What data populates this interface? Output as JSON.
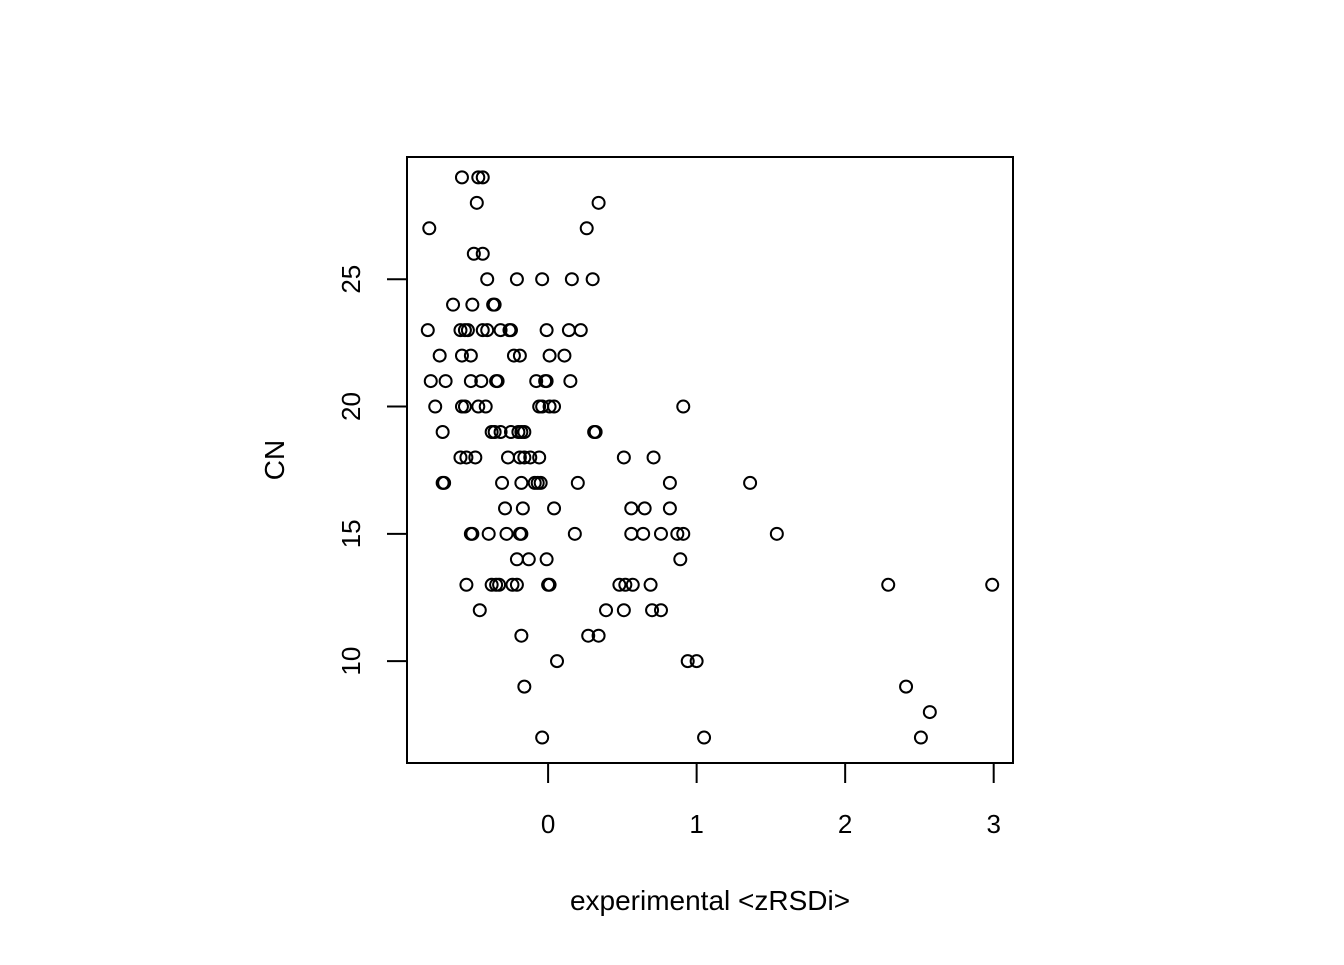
{
  "chart_data": {
    "type": "scatter",
    "title": "",
    "xlabel": "experimental <zRSDi>",
    "ylabel": "CN",
    "xlim": [
      -0.95,
      3.13
    ],
    "ylim": [
      6.0,
      29.8
    ],
    "x_ticks": [
      0,
      1,
      2,
      3
    ],
    "x_tick_labels": [
      "0",
      "1",
      "2",
      "3"
    ],
    "y_ticks": [
      10,
      15,
      20,
      25
    ],
    "y_tick_labels": [
      "10",
      "15",
      "20",
      "25"
    ],
    "grid": false,
    "legend": "none",
    "marker": "open-circle",
    "colors": {
      "points": "#000000",
      "axes": "#000000",
      "background": "#ffffff"
    },
    "series": [
      {
        "points": [
          [
            -0.58,
            29
          ],
          [
            -0.47,
            29
          ],
          [
            -0.44,
            29
          ],
          [
            -0.48,
            28
          ],
          [
            0.34,
            28
          ],
          [
            -0.8,
            27
          ],
          [
            0.26,
            27
          ],
          [
            -0.5,
            26
          ],
          [
            -0.44,
            26
          ],
          [
            -0.41,
            25
          ],
          [
            -0.21,
            25
          ],
          [
            -0.04,
            25
          ],
          [
            0.16,
            25
          ],
          [
            0.3,
            25
          ],
          [
            -0.64,
            24
          ],
          [
            -0.51,
            24
          ],
          [
            -0.37,
            24
          ],
          [
            -0.36,
            24
          ],
          [
            -0.81,
            23
          ],
          [
            -0.59,
            23
          ],
          [
            -0.56,
            23
          ],
          [
            -0.54,
            23
          ],
          [
            -0.44,
            23
          ],
          [
            -0.41,
            23
          ],
          [
            -0.32,
            23
          ],
          [
            -0.26,
            23
          ],
          [
            -0.25,
            23
          ],
          [
            -0.01,
            23
          ],
          [
            0.14,
            23
          ],
          [
            0.22,
            23
          ],
          [
            -0.73,
            22
          ],
          [
            -0.58,
            22
          ],
          [
            -0.52,
            22
          ],
          [
            -0.23,
            22
          ],
          [
            -0.19,
            22
          ],
          [
            0.01,
            22
          ],
          [
            0.11,
            22
          ],
          [
            -0.79,
            21
          ],
          [
            -0.69,
            21
          ],
          [
            -0.52,
            21
          ],
          [
            -0.45,
            21
          ],
          [
            -0.35,
            21
          ],
          [
            -0.34,
            21
          ],
          [
            -0.08,
            21
          ],
          [
            -0.02,
            21
          ],
          [
            -0.01,
            21
          ],
          [
            0.15,
            21
          ],
          [
            -0.76,
            20
          ],
          [
            -0.58,
            20
          ],
          [
            -0.56,
            20
          ],
          [
            -0.47,
            20
          ],
          [
            -0.42,
            20
          ],
          [
            -0.06,
            20
          ],
          [
            -0.04,
            20
          ],
          [
            0.01,
            20
          ],
          [
            0.04,
            20
          ],
          [
            0.91,
            20
          ],
          [
            -0.71,
            19
          ],
          [
            -0.38,
            19
          ],
          [
            -0.36,
            19
          ],
          [
            -0.32,
            19
          ],
          [
            -0.25,
            19
          ],
          [
            -0.2,
            19
          ],
          [
            -0.18,
            19
          ],
          [
            -0.16,
            19
          ],
          [
            0.31,
            19
          ],
          [
            0.32,
            19
          ],
          [
            -0.59,
            18
          ],
          [
            -0.55,
            18
          ],
          [
            -0.49,
            18
          ],
          [
            -0.27,
            18
          ],
          [
            -0.19,
            18
          ],
          [
            -0.16,
            18
          ],
          [
            -0.12,
            18
          ],
          [
            -0.06,
            18
          ],
          [
            0.51,
            18
          ],
          [
            0.71,
            18
          ],
          [
            -0.71,
            17
          ],
          [
            -0.7,
            17
          ],
          [
            -0.31,
            17
          ],
          [
            -0.18,
            17
          ],
          [
            -0.09,
            17
          ],
          [
            -0.07,
            17
          ],
          [
            -0.05,
            17
          ],
          [
            0.2,
            17
          ],
          [
            0.82,
            17
          ],
          [
            1.36,
            17
          ],
          [
            -0.29,
            16
          ],
          [
            -0.17,
            16
          ],
          [
            0.04,
            16
          ],
          [
            0.56,
            16
          ],
          [
            0.65,
            16
          ],
          [
            0.82,
            16
          ],
          [
            -0.52,
            15
          ],
          [
            -0.51,
            15
          ],
          [
            -0.4,
            15
          ],
          [
            -0.28,
            15
          ],
          [
            -0.19,
            15
          ],
          [
            -0.18,
            15
          ],
          [
            0.18,
            15
          ],
          [
            0.56,
            15
          ],
          [
            0.64,
            15
          ],
          [
            0.76,
            15
          ],
          [
            0.87,
            15
          ],
          [
            0.91,
            15
          ],
          [
            1.54,
            15
          ],
          [
            -0.21,
            14
          ],
          [
            -0.13,
            14
          ],
          [
            -0.01,
            14
          ],
          [
            0.89,
            14
          ],
          [
            -0.55,
            13
          ],
          [
            -0.38,
            13
          ],
          [
            -0.35,
            13
          ],
          [
            -0.33,
            13
          ],
          [
            -0.24,
            13
          ],
          [
            -0.21,
            13
          ],
          [
            0.0,
            13
          ],
          [
            0.01,
            13
          ],
          [
            0.48,
            13
          ],
          [
            0.52,
            13
          ],
          [
            0.57,
            13
          ],
          [
            0.69,
            13
          ],
          [
            2.29,
            13
          ],
          [
            2.99,
            13
          ],
          [
            -0.46,
            12
          ],
          [
            0.39,
            12
          ],
          [
            0.51,
            12
          ],
          [
            0.7,
            12
          ],
          [
            0.76,
            12
          ],
          [
            -0.18,
            11
          ],
          [
            0.27,
            11
          ],
          [
            0.34,
            11
          ],
          [
            0.06,
            10
          ],
          [
            0.94,
            10
          ],
          [
            1.0,
            10
          ],
          [
            -0.16,
            9
          ],
          [
            2.41,
            9
          ],
          [
            2.57,
            8
          ],
          [
            -0.04,
            7
          ],
          [
            1.05,
            7
          ],
          [
            2.51,
            7
          ]
        ]
      }
    ]
  }
}
